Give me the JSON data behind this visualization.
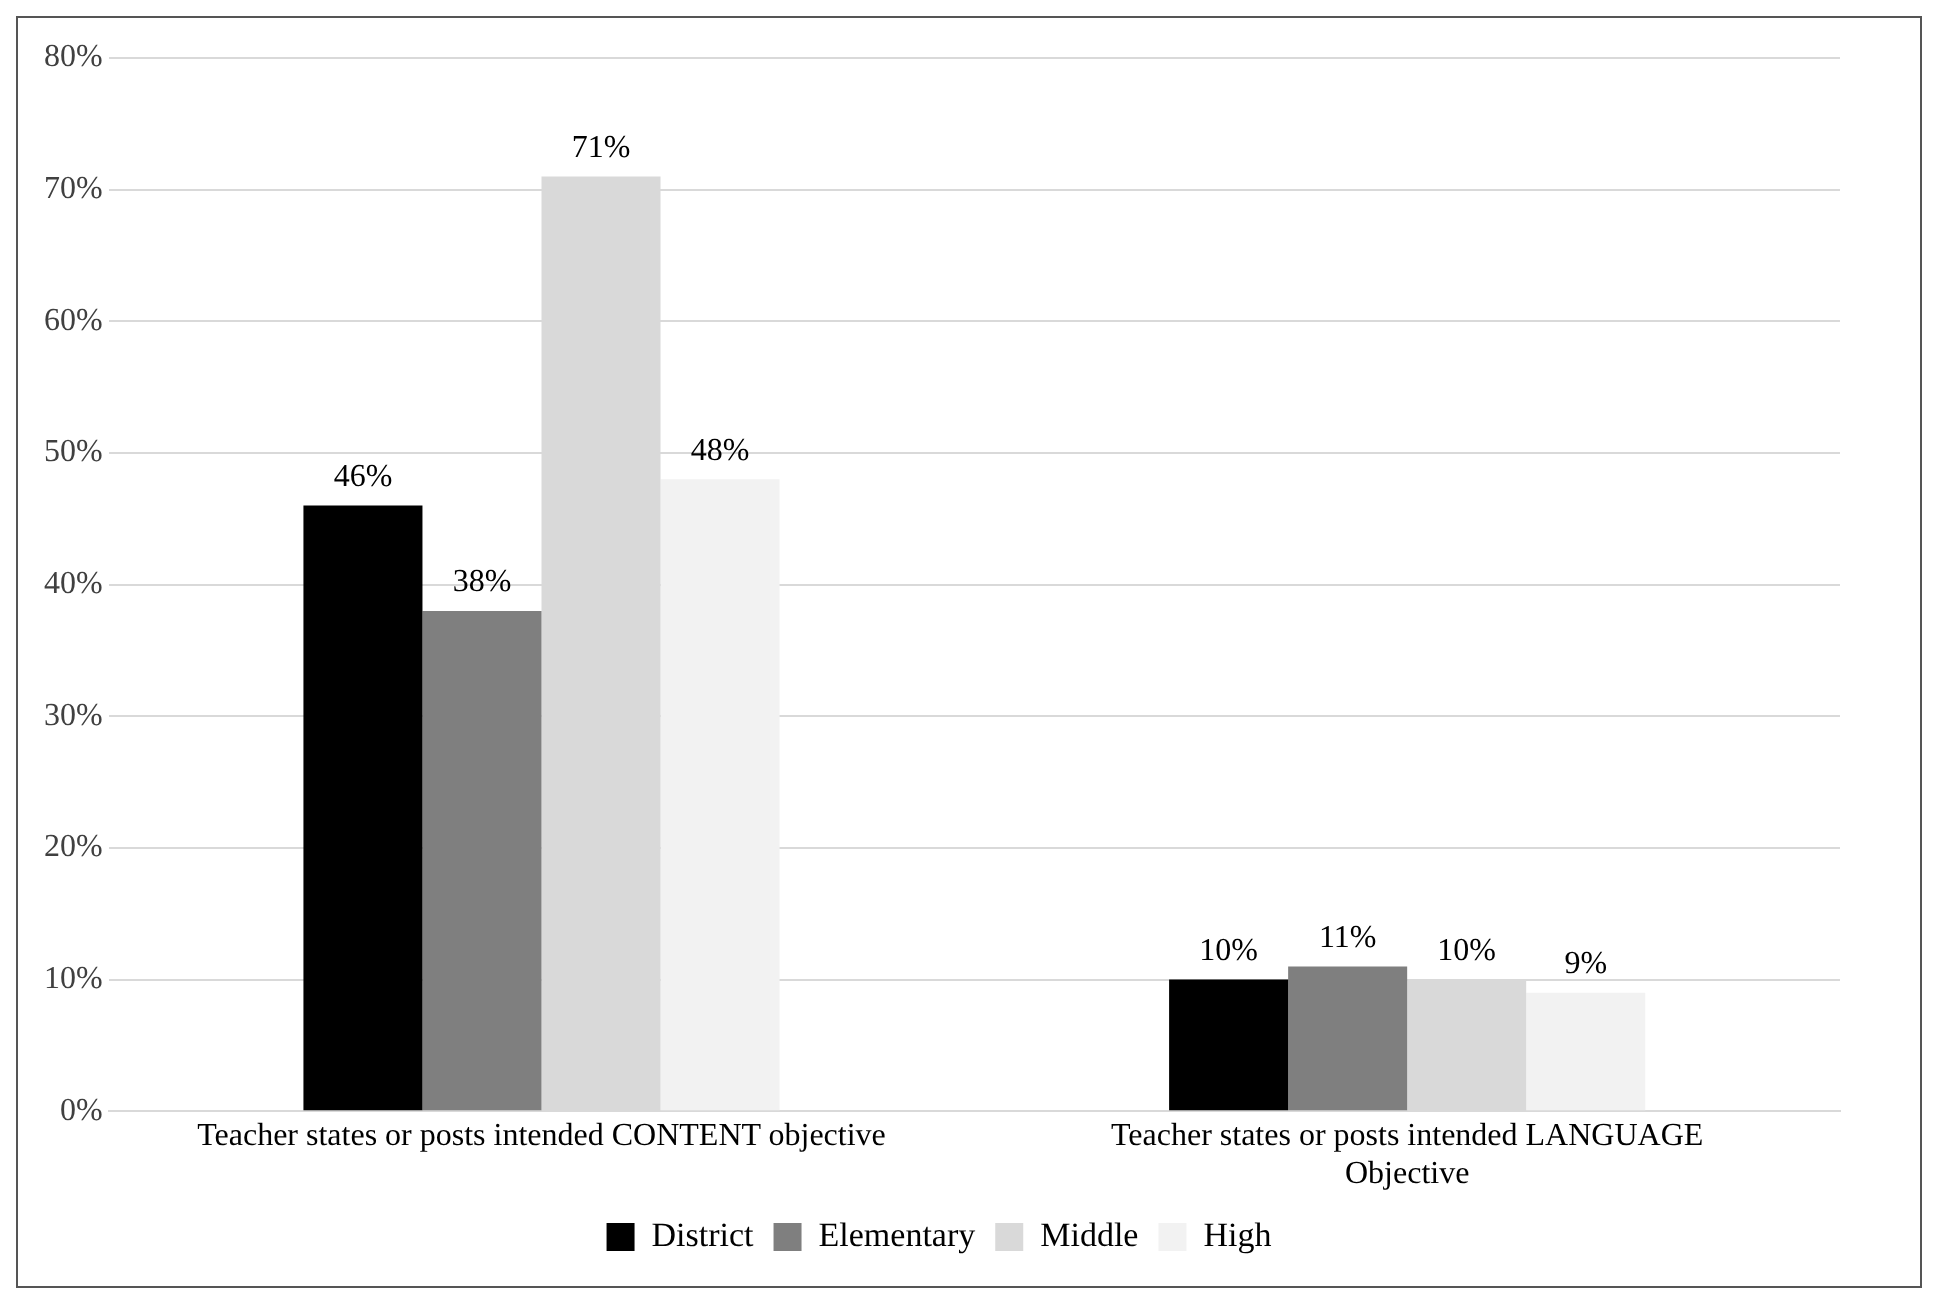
{
  "chart_data": {
    "type": "bar",
    "categories": [
      "Teacher states or posts intended CONTENT objective",
      "Teacher states or posts intended LANGUAGE Objective"
    ],
    "series": [
      {
        "name": "District",
        "color": "#000000",
        "values": [
          46,
          10
        ],
        "value_labels": [
          "46%",
          "10%"
        ]
      },
      {
        "name": "Elementary",
        "color": "#7f7f7f",
        "values": [
          38,
          11
        ],
        "value_labels": [
          "38%",
          "11%"
        ]
      },
      {
        "name": "Middle",
        "color": "#d9d9d9",
        "values": [
          71,
          10
        ],
        "value_labels": [
          "71%",
          "10%"
        ]
      },
      {
        "name": "High",
        "color": "#f2f2f2",
        "values": [
          48,
          9
        ],
        "value_labels": [
          "48%",
          "9%"
        ]
      }
    ],
    "ylim": [
      0,
      80
    ],
    "yticks": [
      {
        "value": 0,
        "label": "0%"
      },
      {
        "value": 10,
        "label": "10%"
      },
      {
        "value": 20,
        "label": "20%"
      },
      {
        "value": 30,
        "label": "30%"
      },
      {
        "value": 40,
        "label": "40%"
      },
      {
        "value": 50,
        "label": "50%"
      },
      {
        "value": 60,
        "label": "60%"
      },
      {
        "value": 70,
        "label": "70%"
      },
      {
        "value": 80,
        "label": "80%"
      }
    ],
    "grid": "y",
    "legend": "bottom"
  }
}
